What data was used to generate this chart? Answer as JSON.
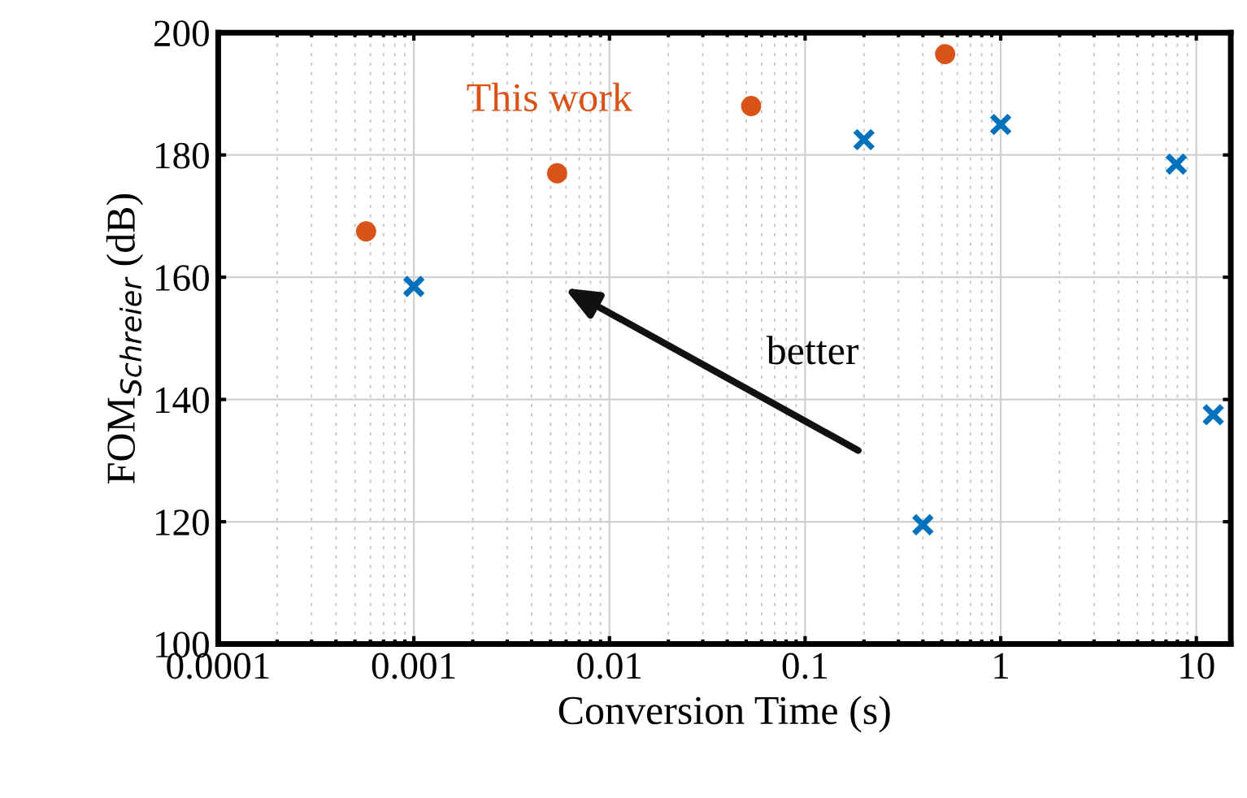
{
  "chart_data": {
    "type": "scatter",
    "xlabel": "Conversion Time (s)",
    "ylabel": "FOM$_{Schreier}$ (dB)",
    "log": "x",
    "grid": true,
    "xlim": [
      0.0001,
      15
    ],
    "xticks": [
      {
        "value": 0.0001,
        "label": "0.0001"
      },
      {
        "value": 0.001,
        "label": "0.001"
      },
      {
        "value": 0.01,
        "label": "0.01"
      },
      {
        "value": 0.1,
        "label": "0.1"
      },
      1,
      10
    ],
    "ylim": [
      100,
      200
    ],
    "yticks": [
      100,
      120,
      140,
      160,
      180,
      200
    ],
    "annotations": [
      "better"
    ],
    "series": [
      {
        "name": "This work",
        "color": "#d95319",
        "marker": "circle",
        "x": [
          0.00057,
          0.0054,
          0.053,
          0.52
        ],
        "values": [
          167.5,
          177,
          188,
          196.5
        ]
      },
      {
        "color": "#0072bd",
        "marker": "cross",
        "x": [
          0.001,
          0.2,
          0.4,
          1.0,
          7.9,
          12.2
        ],
        "values": [
          158.5,
          182.5,
          119.5,
          185,
          178.5,
          137.5
        ]
      }
    ]
  }
}
